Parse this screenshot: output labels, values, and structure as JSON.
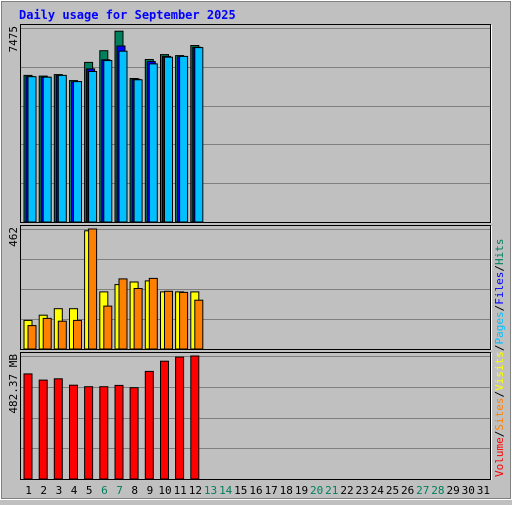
{
  "chart_data": {
    "type": "bar",
    "title": "Daily usage for September 2025",
    "days": [
      "1",
      "2",
      "3",
      "4",
      "5",
      "6",
      "7",
      "8",
      "9",
      "10",
      "11",
      "12",
      "13",
      "14",
      "15",
      "16",
      "17",
      "18",
      "19",
      "20",
      "21",
      "22",
      "23",
      "24",
      "25",
      "26",
      "27",
      "28",
      "29",
      "30",
      "31"
    ],
    "weekend_days": [
      "6",
      "7",
      "13",
      "14",
      "20",
      "21",
      "27",
      "28"
    ],
    "panels": [
      {
        "id": "hits",
        "max_label": "7475",
        "ymax": 7475,
        "series": [
          {
            "name": "Hits",
            "color": "#00805c",
            "values": [
              5650,
              5620,
              5680,
              5450,
              6150,
              6600,
              7350,
              5530,
              6260,
              6450,
              6410,
              6800,
              null,
              null,
              null,
              null,
              null,
              null,
              null,
              null,
              null,
              null,
              null,
              null,
              null,
              null,
              null,
              null,
              null,
              null,
              null
            ]
          },
          {
            "name": "Files",
            "color": "#0000ff",
            "values": [
              5600,
              5580,
              5640,
              5400,
              5900,
              6250,
              6780,
              5500,
              6180,
              6380,
              6370,
              6730,
              null,
              null,
              null,
              null,
              null,
              null,
              null,
              null,
              null,
              null,
              null,
              null,
              null,
              null,
              null,
              null,
              null,
              null,
              null
            ]
          },
          {
            "name": "Pages",
            "color": "#00c0ff",
            "values": [
              5600,
              5580,
              5650,
              5410,
              5800,
              6220,
              6580,
              5480,
              6090,
              6350,
              6380,
              6720,
              null,
              null,
              null,
              null,
              null,
              null,
              null,
              null,
              null,
              null,
              null,
              null,
              null,
              null,
              null,
              null,
              null,
              null,
              null
            ]
          }
        ]
      },
      {
        "id": "visits",
        "max_label": "462",
        "ymax": 462,
        "series": [
          {
            "name": "Visits",
            "color": "#ffff00",
            "values": [
              110,
              130,
              155,
              155,
              455,
              220,
              248,
              258,
              262,
              220,
              220,
              220,
              null,
              null,
              null,
              null,
              null,
              null,
              null,
              null,
              null,
              null,
              null,
              null,
              null,
              null,
              null,
              null,
              null,
              null,
              null
            ]
          },
          {
            "name": "Sites",
            "color": "#ff8000",
            "values": [
              90,
              118,
              107,
              110,
              462,
              165,
              270,
              233,
              272,
              222,
              218,
              188,
              null,
              null,
              null,
              null,
              null,
              null,
              null,
              null,
              null,
              null,
              null,
              null,
              null,
              null,
              null,
              null,
              null,
              null,
              null
            ]
          }
        ]
      },
      {
        "id": "volume",
        "max_label": "482.37 MB",
        "ymax": 482.37,
        "series": [
          {
            "name": "Volume",
            "color": "#ff0000",
            "values": [
              412,
              388,
              393,
              368,
              362,
              362,
              367,
              358,
              422,
              462,
              478,
              482.37,
              null,
              null,
              null,
              null,
              null,
              null,
              null,
              null,
              null,
              null,
              null,
              null,
              null,
              null,
              null,
              null,
              null,
              null,
              null
            ]
          }
        ]
      }
    ],
    "legend": [
      {
        "text": "Volume",
        "color": "#ff0000"
      },
      {
        "text": "/",
        "color": "#000000"
      },
      {
        "text": "Sites",
        "color": "#ff8000"
      },
      {
        "text": "/",
        "color": "#000000"
      },
      {
        "text": "Visits",
        "color": "#ffff00"
      },
      {
        "text": "/",
        "color": "#000000"
      },
      {
        "text": "Pages",
        "color": "#00c0ff"
      },
      {
        "text": "/",
        "color": "#000000"
      },
      {
        "text": "Files",
        "color": "#0000ff"
      },
      {
        "text": "/",
        "color": "#000000"
      },
      {
        "text": "Hits",
        "color": "#00805c"
      }
    ],
    "colors": {
      "background": "#c0c0c0",
      "title": "#0000ff",
      "grid": "#808080",
      "weekday": "#000000",
      "weekend": "#00805c"
    }
  }
}
